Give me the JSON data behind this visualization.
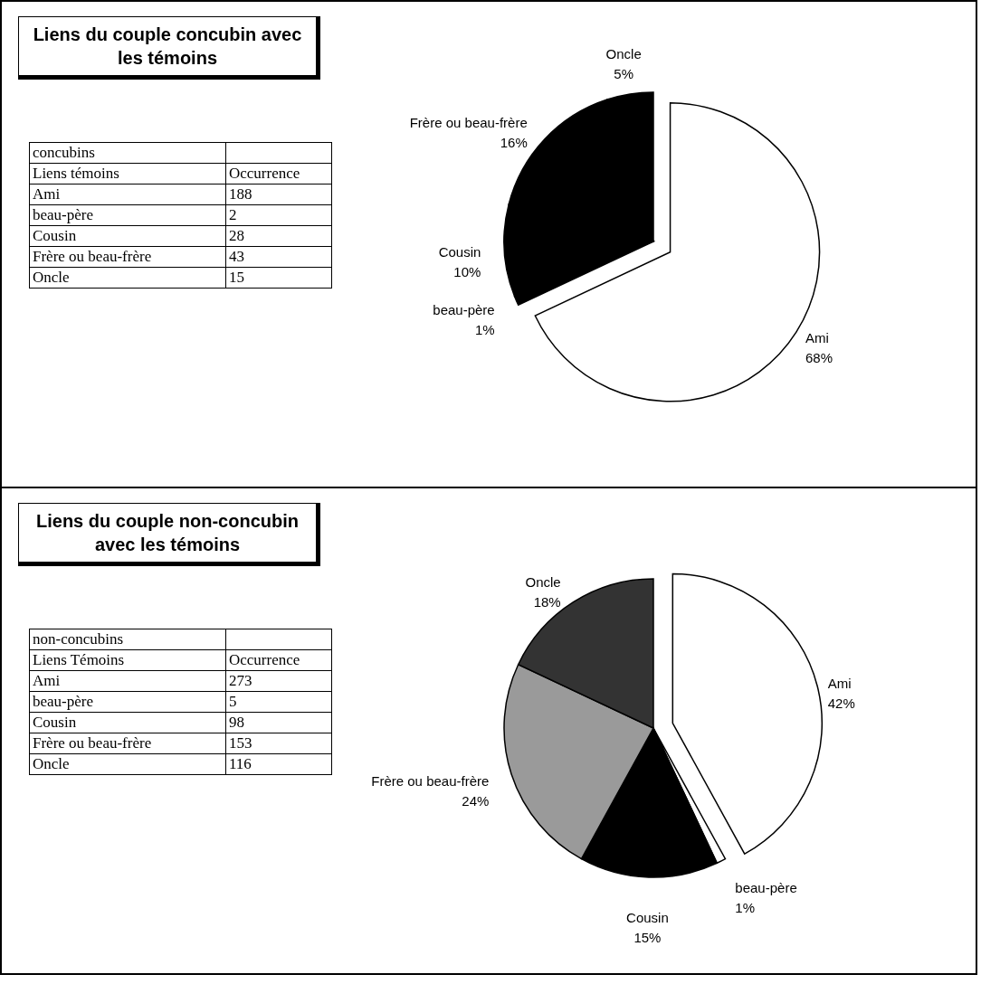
{
  "chart_data": [
    {
      "type": "other",
      "title": "Liens du couple concubin avec les témoins",
      "annotations": [
        "concubins",
        "Liens témoins",
        "Occurrence"
      ],
      "categories": [
        "Ami",
        "beau-père",
        "Cousin",
        "Frère ou beau-frère",
        "Oncle"
      ],
      "values": [
        188,
        2,
        28,
        43,
        15
      ],
      "data_labels": true
    },
    {
      "type": "pie",
      "categories": [
        "Ami",
        "beau-père",
        "Cousin",
        "Frère ou beau-frère",
        "Oncle"
      ],
      "values": [
        68,
        1,
        10,
        16,
        5
      ],
      "value_labels": [
        "68%",
        "1%",
        "10%",
        "16%",
        "5%"
      ],
      "colors": [
        "#ffffff",
        "#000000",
        "#000000",
        "#000000",
        "#000000"
      ]
    },
    {
      "type": "other",
      "title": "Liens du couple non-concubin avec les témoins",
      "annotations": [
        "non-concubins",
        "Liens Témoins",
        "Occurrence"
      ],
      "categories": [
        "Ami",
        "beau-père",
        "Cousin",
        "Frère ou beau-frère",
        "Oncle"
      ],
      "values": [
        273,
        5,
        98,
        153,
        116
      ],
      "data_labels": true
    },
    {
      "type": "pie",
      "categories": [
        "Ami",
        "beau-père",
        "Cousin",
        "Frère ou beau-frère",
        "Oncle"
      ],
      "values": [
        42,
        1,
        15,
        24,
        18
      ],
      "value_labels": [
        "42%",
        "1%",
        "15%",
        "24%",
        "18%"
      ],
      "colors": [
        "#ffffff",
        "#ffffff",
        "#000000",
        "#9a9a9a",
        "#333333"
      ]
    }
  ]
}
